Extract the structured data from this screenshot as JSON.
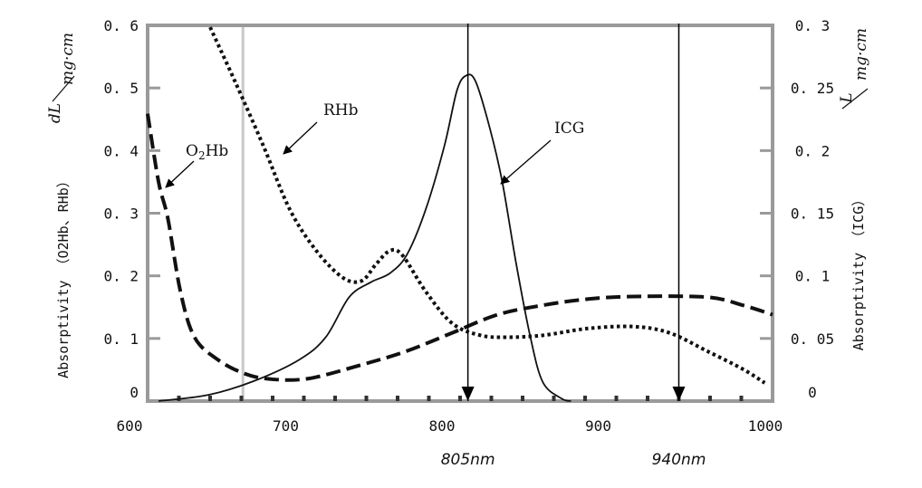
{
  "chart_data": {
    "type": "line",
    "xlabel": "",
    "xlim": [
      600,
      1000
    ],
    "xticks": [
      "600",
      "700",
      "800",
      "900",
      "1000"
    ],
    "y_left": {
      "label": "Absorptivity （O2Hb、RHb）",
      "unit_num": "dL",
      "unit_den": "mg·cm",
      "ylim": [
        0,
        0.6
      ],
      "ticks": [
        "0",
        "0.1",
        "0.2",
        "0.3",
        "0.4",
        "0.5",
        "0.6"
      ]
    },
    "y_right": {
      "label": "Absorptivity （ICG）",
      "unit_num": "L",
      "unit_den": "mg·cm",
      "ylim": [
        0,
        0.3
      ],
      "ticks": [
        "0",
        "0.05",
        "0.1",
        "0.15",
        "0.2",
        "0.25",
        "0.3"
      ]
    },
    "series": [
      {
        "name": "O2Hb",
        "axis": "left",
        "style": "dashed",
        "x": [
          600,
          607,
          613,
          621,
          630,
          645,
          662,
          679,
          703,
          737,
          766,
          795,
          824,
          853,
          882,
          911,
          958,
          981,
          1000
        ],
        "y": [
          0.459,
          0.35,
          0.291,
          0.175,
          0.102,
          0.066,
          0.044,
          0.035,
          0.036,
          0.058,
          0.08,
          0.109,
          0.138,
          0.153,
          0.163,
          0.167,
          0.166,
          0.153,
          0.138
        ]
      },
      {
        "name": "RHb",
        "axis": "left",
        "style": "dotted",
        "x": [
          640,
          656,
          674,
          691,
          708,
          725,
          737,
          746,
          755,
          763,
          778,
          795,
          813,
          830,
          853,
          882,
          911,
          934,
          958,
          981,
          995
        ],
        "y": [
          0.597,
          0.51,
          0.408,
          0.306,
          0.24,
          0.197,
          0.192,
          0.218,
          0.24,
          0.233,
          0.175,
          0.124,
          0.105,
          0.102,
          0.105,
          0.116,
          0.119,
          0.109,
          0.08,
          0.051,
          0.029
        ]
      },
      {
        "name": "ICG",
        "axis": "right",
        "style": "solid",
        "x": [
          607,
          639,
          668,
          697,
          714,
          729,
          743,
          755,
          766,
          778,
          790,
          798,
          804,
          810,
          819,
          827,
          836,
          845,
          853,
          865,
          871
        ],
        "y": [
          0,
          0.005,
          0.016,
          0.033,
          0.051,
          0.083,
          0.095,
          0.102,
          0.117,
          0.153,
          0.204,
          0.248,
          0.26,
          0.255,
          0.218,
          0.175,
          0.109,
          0.051,
          0.015,
          0.002,
          0
        ]
      }
    ],
    "annotations": [
      {
        "text": "O2Hb",
        "base": "O",
        "sub": "2",
        "rest": "Hb"
      },
      {
        "text": "RHb"
      },
      {
        "text": "ICG"
      }
    ],
    "markers": [
      {
        "x": 805,
        "label": "805nm"
      },
      {
        "x": 940,
        "label": "940nm"
      }
    ],
    "reference_line_x": 661,
    "grid": false,
    "legend": "none"
  }
}
